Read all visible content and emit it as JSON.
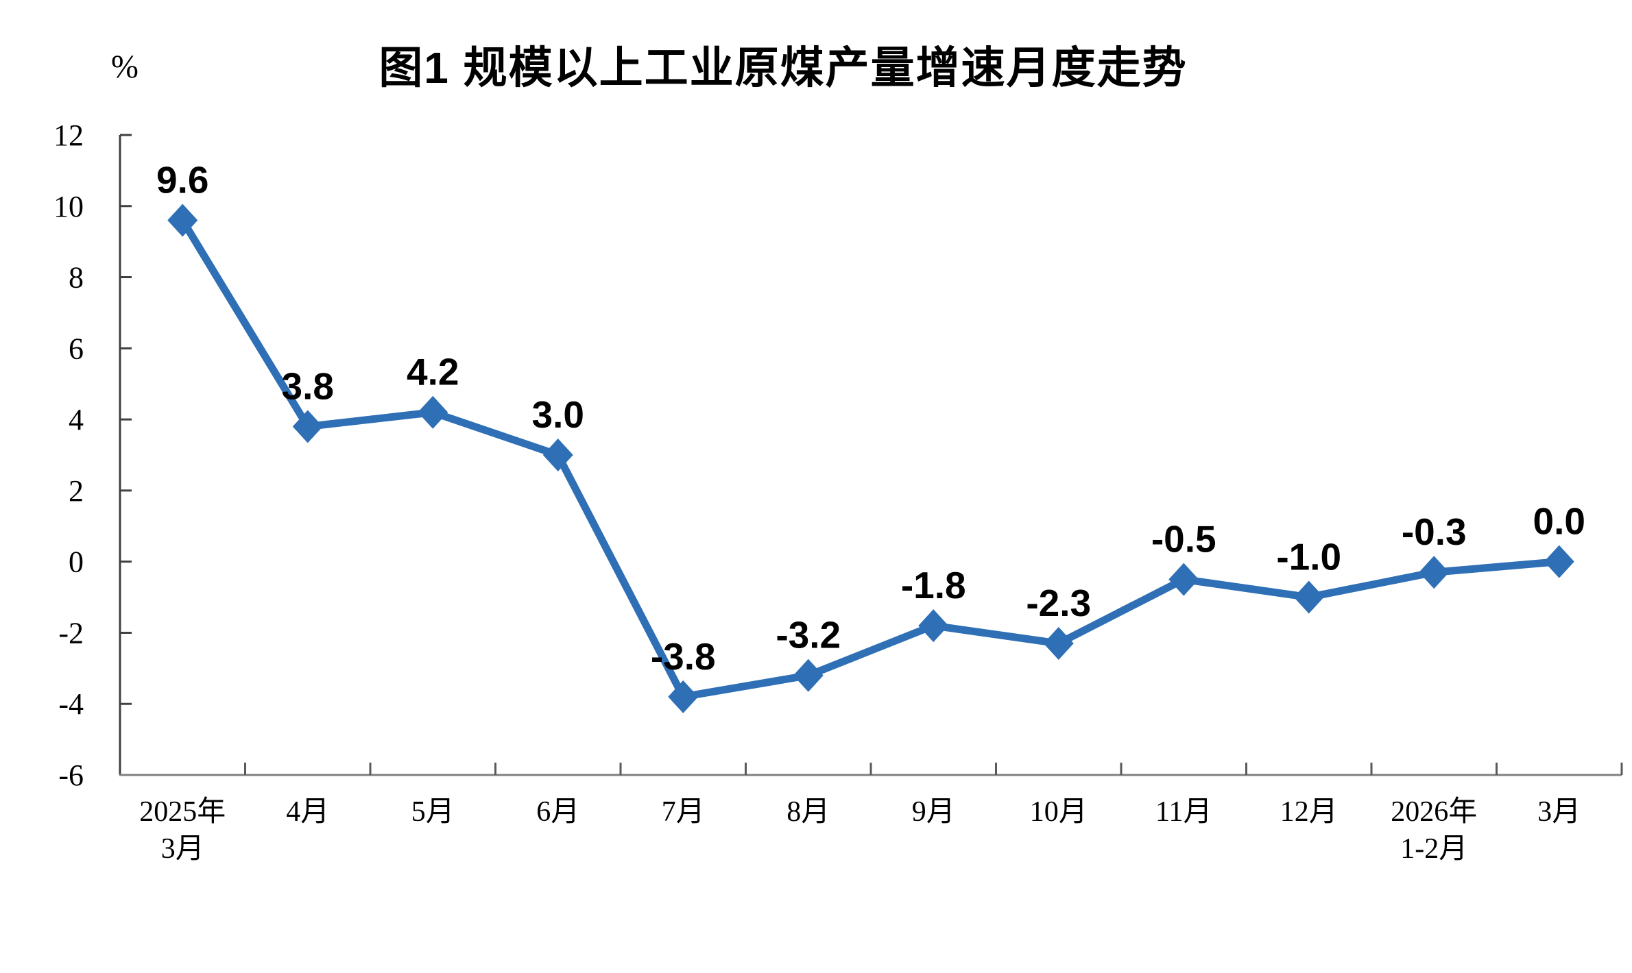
{
  "title": "图1 规模以上工业原煤产量增速月度走势",
  "unit": "%",
  "colors": {
    "line": "#2E6FB5",
    "marker": "#2E6FB5",
    "y_axis": "#404040",
    "x_axis": "#808080",
    "x_tick": "#595959",
    "text": "#000000",
    "background": "#FFFFFF"
  },
  "chart_data": {
    "type": "line",
    "title": "图1 规模以上工业原煤产量增速月度走势",
    "unit": "%",
    "xlabel": "",
    "ylabel": "%",
    "categories": [
      [
        "2025年",
        "3月"
      ],
      [
        "4月"
      ],
      [
        "5月"
      ],
      [
        "6月"
      ],
      [
        "7月"
      ],
      [
        "8月"
      ],
      [
        "9月"
      ],
      [
        "10月"
      ],
      [
        "11月"
      ],
      [
        "12月"
      ],
      [
        "2026年",
        "1-2月"
      ],
      [
        "3月"
      ]
    ],
    "series": [
      {
        "name": "规模以上工业原煤产量增速",
        "values": [
          9.6,
          3.8,
          4.2,
          3.0,
          -3.8,
          -3.2,
          -1.8,
          -2.3,
          -0.5,
          -1.0,
          -0.3,
          0.0
        ],
        "data_labels": [
          "9.6",
          "3.8",
          "4.2",
          "3.0",
          "-3.8",
          "-3.2",
          "-1.8",
          "-2.3",
          "-0.5",
          "-1.0",
          "-0.3",
          "0.0"
        ]
      }
    ],
    "ylim": [
      -6,
      12
    ],
    "yticks": [
      12,
      10,
      8,
      6,
      4,
      2,
      0,
      -2,
      -4,
      -6
    ],
    "grid": false,
    "legend_position": "none",
    "marker": "diamond"
  }
}
